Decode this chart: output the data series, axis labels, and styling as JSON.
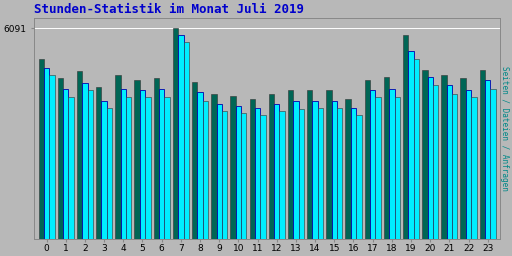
{
  "title": "Stunden-Statistik im Monat Juli 2019",
  "title_color": "#0000cc",
  "title_fontsize": 9,
  "ylabel_right": "Seiten / Dateien / Anfragen",
  "ylabel_right_color": "#008888",
  "ytick_label": "6091",
  "background_color": "#b8b8b8",
  "plot_bg_color": "#b8b8b8",
  "bar_color_dark": "#006655",
  "bar_color_cyan": "#00eeff",
  "bar_color_blue_cyan": "#00aaff",
  "bar_outline": "#444444",
  "hours": [
    0,
    1,
    2,
    3,
    4,
    5,
    6,
    7,
    8,
    9,
    10,
    11,
    12,
    13,
    14,
    15,
    16,
    17,
    18,
    19,
    20,
    21,
    22,
    23
  ],
  "seiten": [
    5200,
    4650,
    4850,
    4400,
    4750,
    4600,
    4650,
    6091,
    4550,
    4200,
    4150,
    4050,
    4200,
    4300,
    4300,
    4300,
    4050,
    4600,
    4700,
    5900,
    4900,
    4750,
    4650,
    4900
  ],
  "dateien": [
    4950,
    4350,
    4500,
    4000,
    4350,
    4300,
    4350,
    5900,
    4250,
    3900,
    3850,
    3800,
    3900,
    3980,
    4000,
    4000,
    3800,
    4300,
    4350,
    5450,
    4700,
    4450,
    4300,
    4600
  ],
  "anfragen": [
    4750,
    4100,
    4300,
    3800,
    4100,
    4100,
    4100,
    5700,
    4000,
    3700,
    3650,
    3600,
    3700,
    3750,
    3800,
    3800,
    3600,
    4100,
    4100,
    5200,
    4450,
    4200,
    4100,
    4350
  ],
  "ylim": [
    0,
    6400
  ],
  "ytick_val": 6091,
  "figsize": [
    5.12,
    2.56
  ],
  "dpi": 100
}
